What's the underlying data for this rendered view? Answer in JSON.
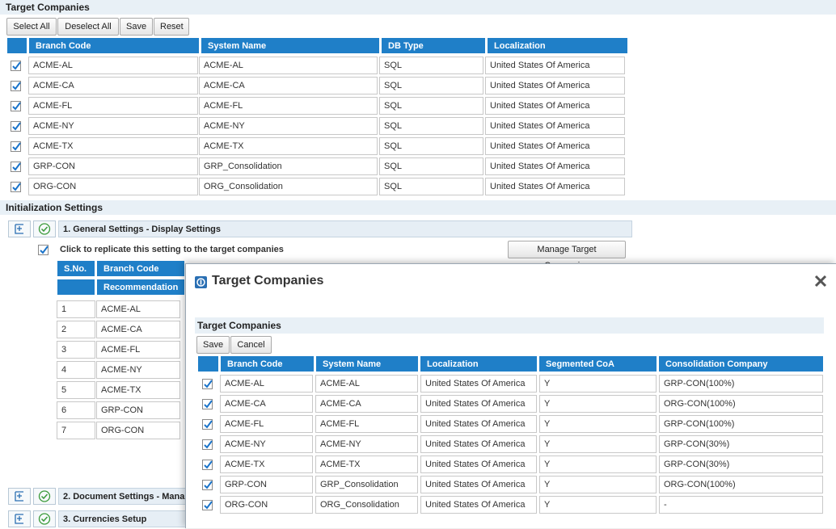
{
  "top": {
    "title": "Target Companies",
    "toolbar": {
      "select_all": "Select All",
      "deselect_all": "Deselect All",
      "save": "Save",
      "reset": "Reset"
    },
    "columns": [
      "Branch Code",
      "System Name",
      "DB Type",
      "Localization"
    ],
    "rows": [
      {
        "branch": "ACME-AL",
        "system": "ACME-AL",
        "db": "SQL",
        "loc": "United States Of America"
      },
      {
        "branch": "ACME-CA",
        "system": "ACME-CA",
        "db": "SQL",
        "loc": "United States Of America"
      },
      {
        "branch": "ACME-FL",
        "system": "ACME-FL",
        "db": "SQL",
        "loc": "United States Of America"
      },
      {
        "branch": "ACME-NY",
        "system": "ACME-NY",
        "db": "SQL",
        "loc": "United States Of America"
      },
      {
        "branch": "ACME-TX",
        "system": "ACME-TX",
        "db": "SQL",
        "loc": "United States Of America"
      },
      {
        "branch": "GRP-CON",
        "system": "GRP_Consolidation",
        "db": "SQL",
        "loc": "United States Of America"
      },
      {
        "branch": "ORG-CON",
        "system": "ORG_Consolidation",
        "db": "SQL",
        "loc": "United States Of America"
      }
    ]
  },
  "init": {
    "title": "Initialization Settings",
    "general": {
      "label": "1. General Settings - Display Settings",
      "replicate_label": "Click to replicate this setting to the target companies",
      "manage_button": "Manage Target Companies",
      "columns": {
        "sno": "S.No.",
        "branch": "Branch Code",
        "recommendation": "Recommendation"
      },
      "rows": [
        {
          "sno": "1",
          "branch": "ACME-AL"
        },
        {
          "sno": "2",
          "branch": "ACME-CA"
        },
        {
          "sno": "3",
          "branch": "ACME-FL"
        },
        {
          "sno": "4",
          "branch": "ACME-NY"
        },
        {
          "sno": "5",
          "branch": "ACME-TX"
        },
        {
          "sno": "6",
          "branch": "GRP-CON"
        },
        {
          "sno": "7",
          "branch": "ORG-CON"
        }
      ]
    },
    "document": {
      "label": "2. Document Settings - Mana"
    },
    "currencies": {
      "label": "3. Currencies Setup"
    }
  },
  "modal": {
    "title": "Target Companies",
    "section_title": "Target Companies",
    "save": "Save",
    "cancel": "Cancel",
    "columns": [
      "Branch Code",
      "System Name",
      "Localization",
      "Segmented CoA",
      "Consolidation Company"
    ],
    "rows": [
      {
        "branch": "ACME-AL",
        "system": "ACME-AL",
        "loc": "United States Of America",
        "seg": "Y",
        "cons": "GRP-CON(100%)"
      },
      {
        "branch": "ACME-CA",
        "system": "ACME-CA",
        "loc": "United States Of America",
        "seg": "Y",
        "cons": "ORG-CON(100%)"
      },
      {
        "branch": "ACME-FL",
        "system": "ACME-FL",
        "loc": "United States Of America",
        "seg": "Y",
        "cons": "GRP-CON(100%)"
      },
      {
        "branch": "ACME-NY",
        "system": "ACME-NY",
        "loc": "United States Of America",
        "seg": "Y",
        "cons": "GRP-CON(30%)"
      },
      {
        "branch": "ACME-TX",
        "system": "ACME-TX",
        "loc": "United States Of America",
        "seg": "Y",
        "cons": "GRP-CON(30%)"
      },
      {
        "branch": "GRP-CON",
        "system": "GRP_Consolidation",
        "loc": "United States Of America",
        "seg": "Y",
        "cons": "ORG-CON(100%)"
      },
      {
        "branch": "ORG-CON",
        "system": "ORG_Consolidation",
        "loc": "United States Of America",
        "seg": "Y",
        "cons": "-"
      }
    ]
  },
  "colors": {
    "header_blue": "#1f7fc8",
    "section_bg": "#e8f0f6",
    "check_blue": "#1a73c9",
    "ok_green": "#3a9a3a"
  }
}
